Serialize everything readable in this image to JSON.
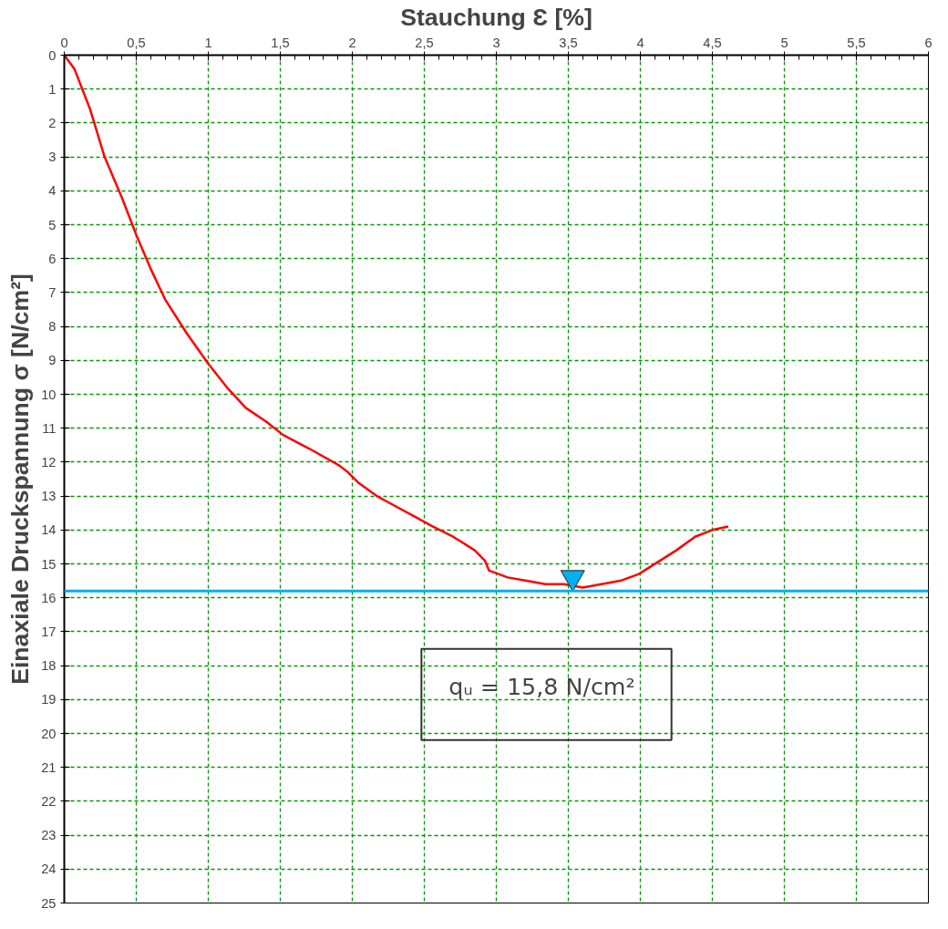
{
  "chart_data": {
    "type": "line",
    "xlabel": "Stauchung Ɛ [%]",
    "ylabel": "Einaxiale Druckspannung σ [N/cm²]",
    "xlim": [
      0,
      6
    ],
    "ylim": [
      25,
      0
    ],
    "xticks": [
      0,
      {
        "value": 0.5,
        "label": "0,5"
      },
      1,
      {
        "value": 1.5,
        "label": "1,5"
      },
      2,
      {
        "value": 2.5,
        "label": "2,5"
      },
      3,
      {
        "value": 3.5,
        "label": "3,5"
      },
      4,
      {
        "value": 4.5,
        "label": "4,5"
      },
      5,
      {
        "value": 5.5,
        "label": "5,5"
      },
      6
    ],
    "yticks": [
      0,
      1,
      2,
      3,
      4,
      5,
      6,
      7,
      8,
      9,
      10,
      11,
      12,
      13,
      14,
      15,
      16,
      17,
      18,
      19,
      20,
      21,
      22,
      23,
      24,
      25
    ],
    "grid": true,
    "series": [
      {
        "color": "#ff0000",
        "marker": "none",
        "x": [
          0,
          0.07,
          0.18,
          0.28,
          0.4,
          0.5,
          0.6,
          0.7,
          0.85,
          1.0,
          1.13,
          1.26,
          1.4,
          1.52,
          1.7,
          1.91,
          1.97,
          2.04,
          2.17,
          2.3,
          2.43,
          2.56,
          2.7,
          2.85,
          2.92,
          2.95,
          3.08,
          3.21,
          3.34,
          3.47,
          3.6,
          3.73,
          3.86,
          3.99,
          4.12,
          4.25,
          4.38,
          4.5,
          4.61
        ],
        "values": [
          0,
          0.4,
          1.6,
          3,
          4.2,
          5.3,
          6.3,
          7.2,
          8.2,
          9.1,
          9.8,
          10.4,
          10.8,
          11.2,
          11.6,
          12.1,
          12.3,
          12.6,
          13,
          13.3,
          13.6,
          13.9,
          14.2,
          14.6,
          14.9,
          15.2,
          15.4,
          15.5,
          15.6,
          15.6,
          15.7,
          15.6,
          15.5,
          15.3,
          14.95,
          14.6,
          14.2,
          14,
          13.9
        ]
      },
      {
        "type": "scatter",
        "color": "#00b0f0",
        "marker": "triangle",
        "x": [
          3.53
        ],
        "values": [
          15.4
        ]
      }
    ],
    "ref_lines": [
      {
        "axis": "y",
        "value": 15.8,
        "color": "#00b0f0"
      }
    ],
    "annotations": [
      "qᵤ = 15,8 N/cm²"
    ]
  }
}
